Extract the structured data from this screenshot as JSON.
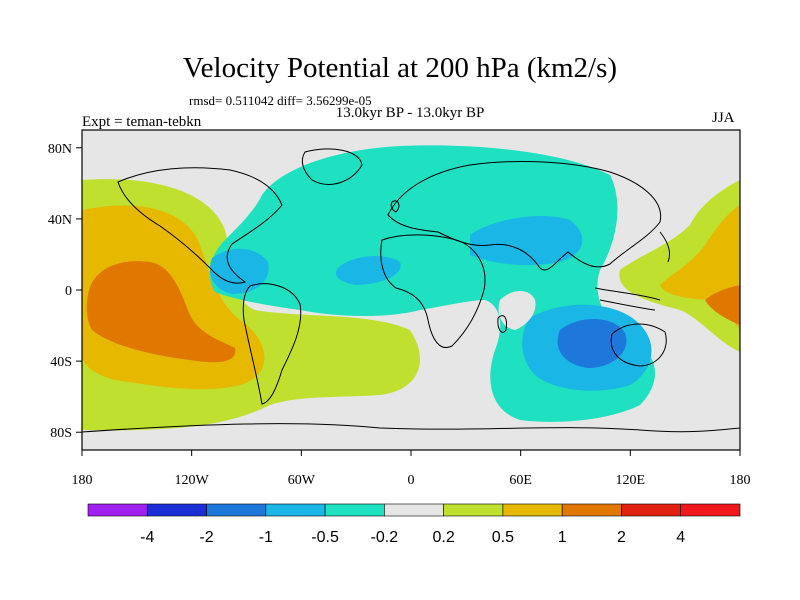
{
  "title": "Velocity Potential at 200 hPa (km2/s)",
  "stats_line": "rmsd= 0.511042 diff= 3.56299e-05",
  "period": "13.0kyr BP - 13.0kyr BP",
  "experiment": "Expt = teman-tebkn",
  "season": "JJA",
  "chart_data": {
    "type": "heatmap",
    "title": "Velocity Potential at 200 hPa (km2/s)",
    "projection": "cylindrical equidistant",
    "lon_range": [
      -180,
      180
    ],
    "lat_range": [
      -90,
      90
    ],
    "x_tick_labels": [
      "180",
      "120W",
      "60W",
      "0",
      "60E",
      "120E",
      "180"
    ],
    "y_tick_labels": [
      "80N",
      "40N",
      "0",
      "40S",
      "80S"
    ],
    "grid": false,
    "colorbar_labels": [
      "-4",
      "-2",
      "-1",
      "-0.5",
      "-0.2",
      "0.2",
      "0.5",
      "1",
      "2",
      "4"
    ],
    "colorbar_colors": [
      "#a020f0",
      "#1c2fd6",
      "#1e78dc",
      "#19b6e6",
      "#1fe0c0",
      "#e6e6e6",
      "#c0e030",
      "#e6b800",
      "#e07800",
      "#e02010",
      "#f0181c"
    ]
  },
  "colors": {
    "ocean_land_background": "#e6e6e6",
    "coastline": "#000000"
  }
}
